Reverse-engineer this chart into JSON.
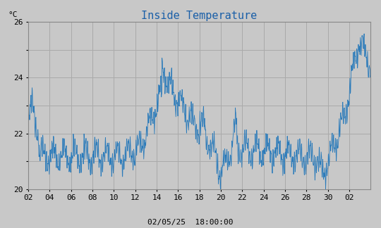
{
  "title": "Inside Temperature",
  "ylabel": "°C",
  "xlabel_bottom": "02/05/25  18:00:00",
  "ylim": [
    20,
    26
  ],
  "yticks": [
    20,
    21,
    22,
    23,
    24,
    25,
    26
  ],
  "xtick_labels": [
    "02",
    "04",
    "06",
    "08",
    "10",
    "12",
    "14",
    "16",
    "18",
    "20",
    "22",
    "24",
    "26",
    "28",
    "30",
    "02"
  ],
  "line_color": "#2b7bba",
  "plot_bg_color": "#c8c8c8",
  "grid_color": "#aaaaaa",
  "title_color": "#1a5fa8",
  "title_fontsize": 11,
  "label_fontsize": 8,
  "tick_fontsize": 8,
  "fig_bg_color": "#c8c8c8",
  "n_days": 32,
  "pts_per_day": 48
}
